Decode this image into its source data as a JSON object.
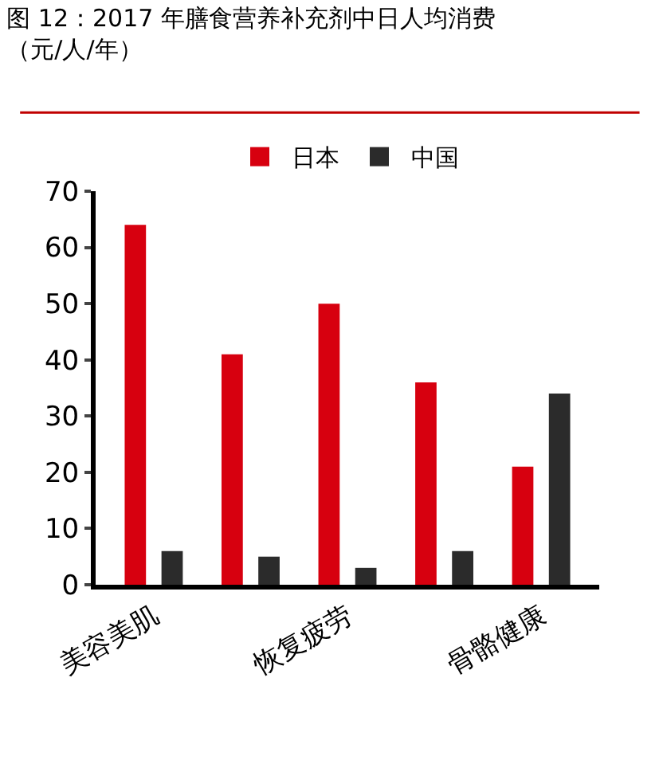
{
  "chart_data": {
    "type": "bar",
    "title": "图 12：2017 年膳食营养补充剂中日人均消费（元/人/年）",
    "categories": [
      "美容美肌",
      null,
      "恢复疲劳",
      null,
      "骨骼健康"
    ],
    "series": [
      {
        "name": "日本",
        "color": "#d7000f",
        "values": [
          64,
          41,
          50,
          36,
          21
        ]
      },
      {
        "name": "中国",
        "color": "#2b2b2b",
        "values": [
          6,
          5,
          3,
          6,
          34
        ]
      }
    ],
    "ylim": [
      0,
      70
    ],
    "yticks": [
      0,
      10,
      20,
      30,
      40,
      50,
      60,
      70
    ],
    "grid": false,
    "legend": "top"
  }
}
